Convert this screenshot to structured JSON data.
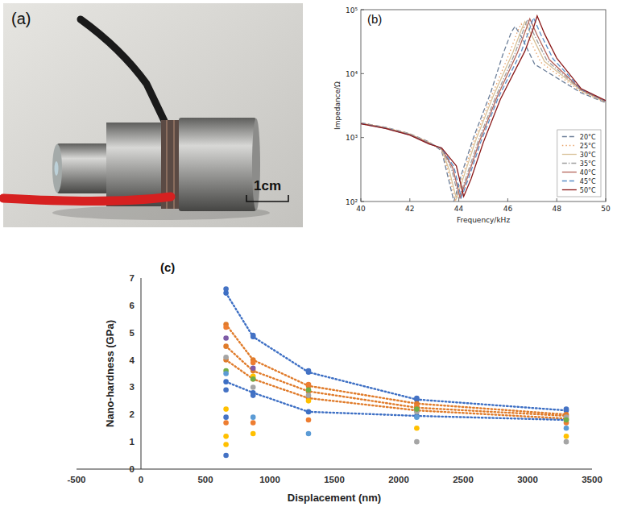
{
  "photo": {
    "label": "(a)",
    "scale_label": "1cm"
  },
  "chart_data": [
    {
      "type": "line",
      "annotations": [
        "(b)"
      ],
      "x_label": "Frequency/kHz",
      "y_label": "Impedance/Ω",
      "xlim": [
        40,
        50
      ],
      "xticks": [
        40,
        42,
        44,
        46,
        48,
        50
      ],
      "ylim": [
        100,
        100000
      ],
      "yticks": [
        {
          "value": 100,
          "label": "10²"
        },
        {
          "value": 1000,
          "label": "10³"
        },
        {
          "value": 10000,
          "label": "10⁴"
        },
        {
          "value": 100000,
          "label": "10⁵"
        }
      ],
      "log": "y",
      "grid": false,
      "legend": "lower right",
      "series": [
        {
          "name": "20°C",
          "color": "#6d7f99",
          "line_style": "dashed",
          "x": [
            40,
            41,
            42,
            42.8,
            43.3,
            43.5,
            43.8,
            44.1,
            44.6,
            45.3,
            45.8,
            46.15,
            46.3,
            46.6,
            47.1,
            49,
            50
          ],
          "values": [
            1700,
            1450,
            1150,
            850,
            620,
            300,
            100,
            260,
            1000,
            5000,
            20000,
            45000,
            55000,
            35000,
            14000,
            5000,
            3500
          ]
        },
        {
          "name": "25°C",
          "color": "#e8a36a",
          "line_style": "dotted",
          "x": [
            40,
            41,
            42,
            42.8,
            43.3,
            43.55,
            43.85,
            44.15,
            44.65,
            45.35,
            46.05,
            46.4,
            46.55,
            46.85,
            47.35,
            49,
            50
          ],
          "values": [
            1690,
            1440,
            1140,
            840,
            640,
            310,
            105,
            250,
            950,
            4600,
            20000,
            46000,
            60000,
            37000,
            15000,
            5200,
            3550
          ]
        },
        {
          "name": "30°C",
          "color": "#d9c29a",
          "line_style": "solid",
          "x": [
            40,
            41,
            42,
            42.8,
            43.3,
            43.6,
            43.9,
            44.2,
            44.7,
            45.4,
            46.2,
            46.55,
            46.7,
            47.0,
            47.5,
            49,
            50
          ],
          "values": [
            1680,
            1430,
            1130,
            830,
            650,
            320,
            110,
            245,
            920,
            4400,
            21000,
            48000,
            65000,
            38000,
            15500,
            5400,
            3600
          ]
        },
        {
          "name": "35°C",
          "color": "#9e9e9e",
          "line_style": "dashdot",
          "x": [
            40,
            41,
            42,
            42.8,
            43.3,
            43.7,
            44.0,
            44.3,
            44.8,
            45.5,
            46.3,
            46.65,
            46.8,
            47.1,
            47.6,
            49,
            50
          ],
          "values": [
            1670,
            1420,
            1120,
            820,
            660,
            330,
            110,
            240,
            900,
            4300,
            21000,
            49000,
            70000,
            39000,
            16000,
            5500,
            3650
          ]
        },
        {
          "name": "40°C",
          "color": "#b5655a",
          "line_style": "solid",
          "x": [
            40,
            41,
            42,
            42.8,
            43.3,
            43.75,
            44.05,
            44.35,
            44.85,
            45.55,
            46.4,
            46.75,
            46.9,
            47.2,
            47.7,
            49,
            50
          ],
          "values": [
            1660,
            1410,
            1110,
            810,
            670,
            340,
            115,
            235,
            880,
            4200,
            21500,
            50000,
            72000,
            40000,
            16500,
            5600,
            3700
          ]
        },
        {
          "name": "45°C",
          "color": "#5b8fc7",
          "line_style": "dashed",
          "x": [
            40,
            41,
            42,
            42.8,
            43.3,
            43.8,
            44.1,
            44.4,
            44.9,
            45.6,
            46.55,
            46.9,
            47.05,
            47.35,
            47.85,
            49,
            50
          ],
          "values": [
            1650,
            1400,
            1100,
            800,
            680,
            350,
            115,
            230,
            860,
            4100,
            22000,
            51000,
            75000,
            41000,
            17000,
            5700,
            3750
          ]
        },
        {
          "name": "50°C",
          "color": "#8b1a1a",
          "line_style": "solid",
          "x": [
            40,
            41,
            42,
            42.8,
            43.3,
            43.9,
            44.2,
            44.5,
            45.0,
            45.7,
            46.7,
            47.05,
            47.2,
            47.5,
            48.0,
            49,
            50
          ],
          "values": [
            1640,
            1390,
            1090,
            790,
            690,
            360,
            120,
            225,
            840,
            4000,
            22500,
            52000,
            80000,
            42000,
            17500,
            5800,
            3800
          ]
        }
      ]
    },
    {
      "type": "scatter",
      "annotations": [
        "(c)"
      ],
      "x_label": "Displacement (nm)",
      "y_label": "Nano-hardness (GPa)",
      "xlim": [
        -500,
        3500
      ],
      "xticks": [
        -500,
        0,
        500,
        1000,
        1500,
        2000,
        2500,
        3000,
        3500
      ],
      "ylim": [
        0,
        7
      ],
      "yticks": [
        0,
        1,
        2,
        3,
        4,
        5,
        6,
        7
      ],
      "grid": false,
      "series": [
        {
          "type": "line",
          "line_style": "dotted",
          "marker": "circle",
          "color": "#3d6fc4",
          "x": [
            660,
            870,
            1300,
            2140,
            3300
          ],
          "values": [
            6.45,
            4.85,
            3.55,
            2.55,
            2.15
          ]
        },
        {
          "type": "line",
          "line_style": "dotted",
          "marker": "circle",
          "color": "#e07b2a",
          "x": [
            660,
            870,
            1300,
            2140,
            3300
          ],
          "values": [
            5.3,
            4.0,
            3.05,
            2.4,
            2.0
          ]
        },
        {
          "type": "line",
          "line_style": "dotted",
          "marker": "circle",
          "color": "#e07b2a",
          "x": [
            660,
            870,
            1300,
            2140,
            3300
          ],
          "values": [
            4.5,
            3.6,
            2.85,
            2.25,
            1.95
          ]
        },
        {
          "type": "line",
          "line_style": "dotted",
          "marker": "circle",
          "color": "#e07b2a",
          "x": [
            660,
            870,
            1300,
            2140,
            3300
          ],
          "values": [
            4.0,
            3.3,
            2.6,
            2.15,
            1.85
          ]
        },
        {
          "type": "line",
          "line_style": "dotted",
          "marker": "circle",
          "color": "#3d6fc4",
          "x": [
            660,
            870,
            1300,
            2140,
            3300
          ],
          "values": [
            3.2,
            2.8,
            2.1,
            1.95,
            1.8
          ]
        },
        {
          "type": "scatter",
          "marker": "circle",
          "color": "#4472c4",
          "x": [
            660,
            660,
            660,
            870,
            870,
            1300,
            2140,
            3300,
            660
          ],
          "values": [
            6.6,
            2.9,
            1.9,
            4.9,
            2.7,
            3.6,
            2.6,
            2.2,
            0.5
          ]
        },
        {
          "type": "scatter",
          "marker": "circle",
          "color": "#ed7d31",
          "x": [
            660,
            660,
            870,
            870,
            1300,
            1300,
            2140,
            3300
          ],
          "values": [
            5.2,
            1.7,
            3.9,
            1.7,
            3.1,
            1.8,
            2.3,
            1.7
          ]
        },
        {
          "type": "scatter",
          "marker": "circle",
          "color": "#ffc000",
          "x": [
            660,
            660,
            870,
            870,
            1300,
            2140,
            3300,
            660
          ],
          "values": [
            2.2,
            0.9,
            3.4,
            1.3,
            2.5,
            1.5,
            1.2,
            1.2
          ]
        },
        {
          "type": "scatter",
          "marker": "circle",
          "color": "#a5a5a5",
          "x": [
            660,
            870,
            1300,
            2140,
            3300,
            2140,
            3300
          ],
          "values": [
            4.1,
            3.0,
            2.7,
            2.1,
            1.9,
            1.0,
            1.0
          ]
        },
        {
          "type": "scatter",
          "marker": "circle",
          "color": "#7e5ba6",
          "x": [
            660,
            870
          ],
          "values": [
            4.8,
            3.7
          ]
        },
        {
          "type": "scatter",
          "marker": "circle",
          "color": "#70ad47",
          "x": [
            660,
            870,
            1300,
            2140,
            3300
          ],
          "values": [
            3.6,
            3.3,
            2.9,
            2.2,
            1.8
          ]
        },
        {
          "type": "scatter",
          "marker": "circle",
          "color": "#5b9bd5",
          "x": [
            660,
            870,
            1300,
            2140,
            3300
          ],
          "values": [
            3.5,
            1.9,
            1.3,
            1.9,
            1.5
          ]
        }
      ]
    }
  ]
}
